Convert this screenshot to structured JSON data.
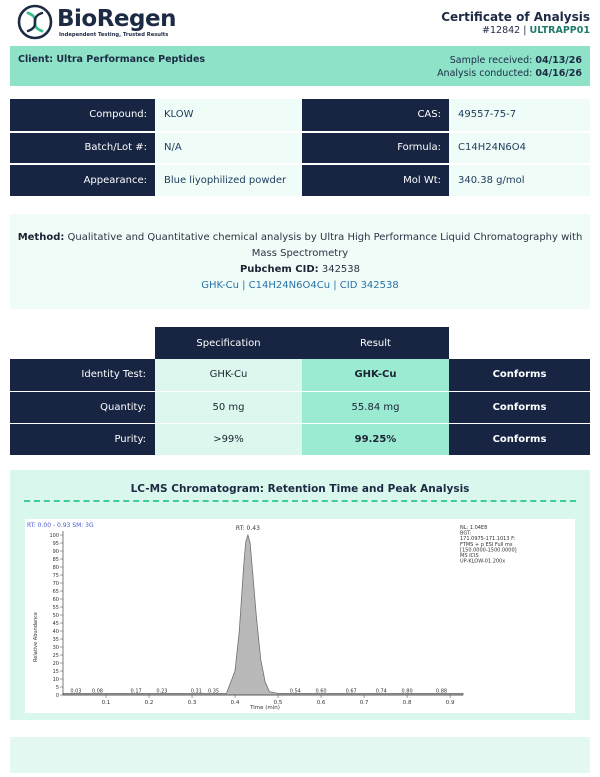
{
  "brand": {
    "name": "BioRegen",
    "tagline": "Independent Testing, Trusted Results"
  },
  "certificate": {
    "title": "Certificate of Analysis",
    "number": "#12842",
    "separator": "|",
    "code": "ULTRAPP01"
  },
  "client": {
    "label": "Client:",
    "name": "Ultra Performance Peptides",
    "received_label": "Sample received:",
    "received": "04/13/26",
    "conducted_label": "Analysis conducted:",
    "conducted": "04/16/26"
  },
  "compound": {
    "rows": [
      {
        "l1": "Compound:",
        "v1": "KLOW",
        "l2": "CAS:",
        "v2": "49557-75-7"
      },
      {
        "l1": "Batch/Lot #:",
        "v1": "N/A",
        "l2": "Formula:",
        "v2": "C14H24N6O4"
      },
      {
        "l1": "Appearance:",
        "v1": "Blue liyophilized powder",
        "l2": "Mol Wt:",
        "v2": "340.38 g/mol"
      }
    ]
  },
  "method": {
    "label": "Method:",
    "text": "Qualitative and Quantitative chemical analysis by Ultra High Performance Liquid Chromatography with Mass Spectrometry",
    "pubchem_label": "Pubchem CID:",
    "pubchem_cid": "342538",
    "cid_line": "GHK-Cu | C14H24N6O4Cu | CID 342538"
  },
  "results": {
    "headers": {
      "spec": "Specification",
      "result": "Result"
    },
    "rows": [
      {
        "label": "Identity Test:",
        "spec": "GHK-Cu",
        "result": "GHK-Cu",
        "result_bold": true,
        "status": "Conforms"
      },
      {
        "label": "Quantity:",
        "spec": "50 mg",
        "result": "55.84 mg",
        "result_bold": false,
        "status": "Conforms"
      },
      {
        "label": "Purity:",
        "spec": ">99%",
        "result": "99.25%",
        "result_bold": true,
        "status": "Conforms"
      }
    ]
  },
  "chromatogram": {
    "title": "LC-MS Chromatogram: Retention Time and Peak Analysis",
    "header_left": "RT: 0.00 - 0.93  SM: 3G",
    "peak_label": "RT: 0.43",
    "info_lines": [
      "NL: 1.04E8",
      "BGT:",
      "171.0975-171.1013 F:",
      "FTMS + p ESI Full ms",
      "[150.0000-1500.0000]",
      "MS ICIS",
      "UP-KLOW-01.200x"
    ],
    "y_label": "Relative Abundance",
    "x_label": "Time (min)",
    "colors": {
      "fill": "#b9b9b9",
      "stroke": "#6f6f6f",
      "accent": "#4a5cd0"
    }
  },
  "chart_data": {
    "type": "area",
    "title": "LC-MS Chromatogram: Retention Time and Peak Analysis",
    "xlabel": "Time (min)",
    "ylabel": "Relative Abundance",
    "xlim": [
      0.0,
      0.93
    ],
    "ylim": [
      0,
      100
    ],
    "x_ticks": [
      "0.1",
      "0.2",
      "0.3",
      "0.4",
      "0.5",
      "0.6",
      "0.7",
      "0.8",
      "0.9"
    ],
    "y_ticks": [
      "0",
      "5",
      "10",
      "15",
      "20",
      "25",
      "30",
      "35",
      "40",
      "45",
      "50",
      "55",
      "60",
      "65",
      "70",
      "75",
      "80",
      "85",
      "90",
      "95",
      "100"
    ],
    "series": [
      {
        "x": [
          0.0,
          0.05,
          0.1,
          0.2,
          0.3,
          0.38,
          0.4,
          0.41,
          0.42,
          0.425,
          0.43,
          0.435,
          0.44,
          0.45,
          0.46,
          0.47,
          0.48,
          0.5,
          0.55,
          0.6,
          0.7,
          0.8,
          0.93
        ],
        "y": [
          1,
          1,
          1,
          1,
          1,
          1,
          15,
          40,
          80,
          96,
          100,
          95,
          80,
          48,
          22,
          8,
          2,
          1,
          1,
          1,
          1,
          1,
          1
        ]
      }
    ],
    "peak_labels": [
      {
        "x": 0.03,
        "label": "0.03"
      },
      {
        "x": 0.08,
        "label": "0.08"
      },
      {
        "x": 0.17,
        "label": "0.17"
      },
      {
        "x": 0.23,
        "label": "0.23"
      },
      {
        "x": 0.31,
        "label": "0.31"
      },
      {
        "x": 0.35,
        "label": "0.35"
      },
      {
        "x": 0.54,
        "label": "0.54"
      },
      {
        "x": 0.6,
        "label": "0.60"
      },
      {
        "x": 0.67,
        "label": "0.67"
      },
      {
        "x": 0.74,
        "label": "0.74"
      },
      {
        "x": 0.8,
        "label": "0.80"
      },
      {
        "x": 0.88,
        "label": "0.88"
      }
    ]
  }
}
